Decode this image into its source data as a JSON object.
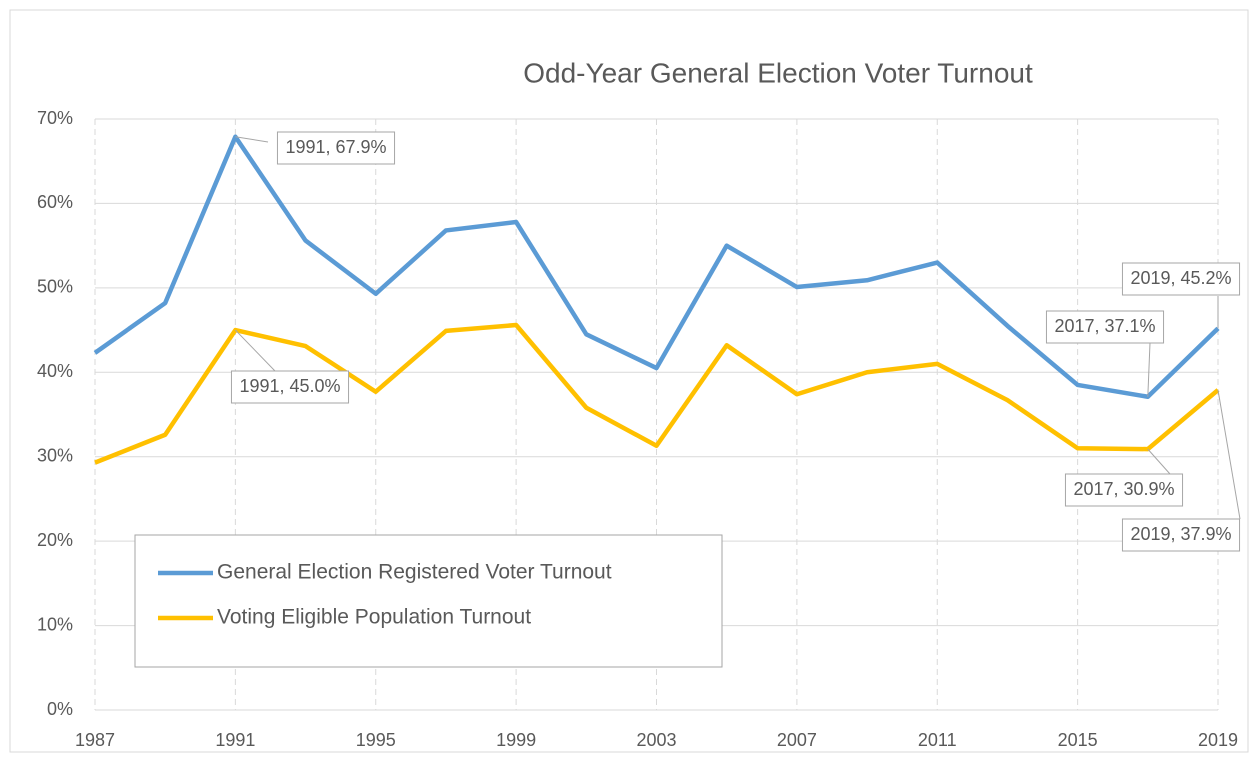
{
  "chart_data": {
    "type": "line",
    "title": "Odd-Year General Election Voter Turnout",
    "x": [
      1987,
      1989,
      1991,
      1993,
      1995,
      1997,
      1999,
      2001,
      2003,
      2005,
      2007,
      2009,
      2011,
      2013,
      2015,
      2017,
      2019
    ],
    "series": [
      {
        "name": "General Election Registered Voter Turnout",
        "color": "#5b9bd5",
        "values": [
          42.3,
          48.2,
          67.9,
          55.6,
          49.3,
          56.8,
          57.8,
          44.5,
          40.5,
          55.0,
          50.1,
          50.9,
          53.0,
          45.5,
          38.5,
          37.1,
          45.2
        ],
        "value_labels": [
          null,
          null,
          "1991, 67.9%",
          null,
          null,
          null,
          null,
          null,
          null,
          null,
          null,
          null,
          null,
          null,
          null,
          "2017, 37.1%",
          "2019, 45.2%"
        ]
      },
      {
        "name": "Voting Eligible Population Turnout",
        "color": "#ffc000",
        "values": [
          29.3,
          32.6,
          45.0,
          43.1,
          37.7,
          44.9,
          45.6,
          35.8,
          31.3,
          43.2,
          37.4,
          40.0,
          41.0,
          36.7,
          31.0,
          30.9,
          37.9
        ],
        "value_labels": [
          null,
          null,
          "1991, 45.0%",
          null,
          null,
          null,
          null,
          null,
          null,
          null,
          null,
          null,
          null,
          null,
          null,
          "2017, 30.9%",
          "2019, 37.9%"
        ]
      }
    ],
    "xlim": [
      1987,
      2019
    ],
    "xticks": [
      1987,
      1991,
      1995,
      1999,
      2003,
      2007,
      2011,
      2015,
      2019
    ],
    "ylim": [
      0,
      70
    ],
    "yticks": [
      {
        "value": 0,
        "label": "0%"
      },
      {
        "value": 10,
        "label": "10%"
      },
      {
        "value": 20,
        "label": "20%"
      },
      {
        "value": 30,
        "label": "30%"
      },
      {
        "value": 40,
        "label": "40%"
      },
      {
        "value": 50,
        "label": "50%"
      },
      {
        "value": 60,
        "label": "60%"
      },
      {
        "value": 70,
        "label": "70%"
      }
    ],
    "grid": true,
    "legend": "lower left"
  }
}
